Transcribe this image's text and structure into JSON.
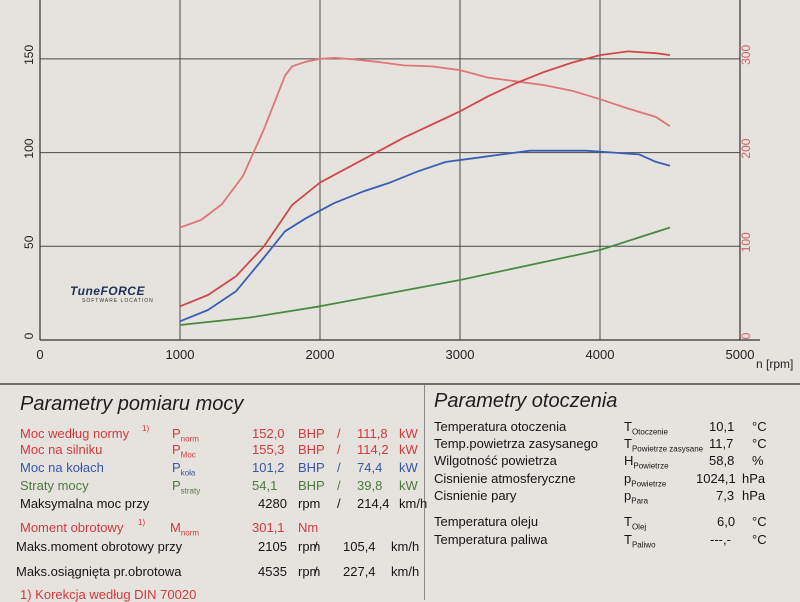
{
  "chart_data": {
    "type": "line",
    "xlabel": "n [rpm]",
    "x_ticks": [
      0,
      1000,
      2000,
      3000,
      4000,
      5000
    ],
    "y_left_ticks": [
      0,
      50,
      100,
      150
    ],
    "y_right_ticks": [
      0,
      100,
      200,
      300
    ],
    "xlim": [
      0,
      5000
    ],
    "ylim_left": [
      0,
      175
    ],
    "ylim_right": [
      0,
      350
    ],
    "grid": true,
    "series": [
      {
        "axis": "right",
        "color": "#e07575",
        "x": [
          1000,
          1150,
          1300,
          1450,
          1600,
          1750,
          1800,
          1900,
          2000,
          2105,
          2200,
          2400,
          2600,
          2800,
          3000,
          3200,
          3400,
          3600,
          3800,
          4000,
          4200,
          4400,
          4500
        ],
        "values": [
          120,
          128,
          145,
          175,
          225,
          282,
          292,
          297,
          300,
          301,
          300,
          297,
          293,
          292,
          288,
          280,
          276,
          272,
          266,
          257,
          247,
          238,
          228
        ]
      },
      {
        "axis": "left",
        "color": "#d04848",
        "x": [
          1000,
          1200,
          1400,
          1600,
          1800,
          2000,
          2200,
          2400,
          2600,
          2800,
          3000,
          3200,
          3400,
          3600,
          3800,
          4000,
          4200,
          4400,
          4500
        ],
        "values": [
          18,
          24,
          34,
          50,
          72,
          84,
          92,
          100,
          108,
          115,
          122,
          130,
          137,
          143,
          148,
          152,
          154,
          153,
          152
        ]
      },
      {
        "axis": "left",
        "color": "#3a5eb5",
        "x": [
          1000,
          1200,
          1400,
          1600,
          1750,
          1900,
          2100,
          2300,
          2500,
          2700,
          2900,
          3100,
          3300,
          3500,
          3700,
          3900,
          4100,
          4280,
          4400,
          4500
        ],
        "values": [
          10,
          16,
          26,
          44,
          58,
          65,
          73,
          79,
          84,
          90,
          95,
          97,
          99,
          101,
          101,
          101,
          100,
          99,
          95,
          93
        ]
      },
      {
        "axis": "left",
        "color": "#4a8a40",
        "x": [
          1000,
          1500,
          2000,
          2500,
          3000,
          3500,
          4000,
          4500
        ],
        "values": [
          8,
          12,
          18,
          25,
          32,
          40,
          48,
          60
        ]
      }
    ]
  },
  "logo": {
    "main": "TuneFORCE",
    "sub": "SOFTWARE LOCATION"
  },
  "left_panel": {
    "title": "Parametry pomiaru mocy",
    "rows": [
      {
        "label": "Moc według normy",
        "sup": "1)",
        "sym": "P",
        "sub": "norm",
        "v1": "152,0",
        "u1": "BHP",
        "sep": "/",
        "v2": "111,8",
        "u2": "kW"
      },
      {
        "label": "Moc na silniku",
        "sym": "P",
        "sub": "Moc",
        "v1": "155,3",
        "u1": "BHP",
        "sep": "/",
        "v2": "114,2",
        "u2": "kW"
      },
      {
        "label": "Moc na kołach",
        "sym": "P",
        "sub": "koła",
        "v1": "101,2",
        "u1": "BHP",
        "sep": "/",
        "v2": "74,4",
        "u2": "kW"
      },
      {
        "label": "Straty mocy",
        "sym": "P",
        "sub": "straty",
        "v1": "54,1",
        "u1": "BHP",
        "sep": "/",
        "v2": "39,8",
        "u2": "kW"
      },
      {
        "label": "Maksymalna moc przy",
        "v1": "4280",
        "u1": "rpm",
        "sep": "/",
        "v2": "214,4",
        "u2": "km/h"
      },
      {
        "label": "Moment obrotowy",
        "sup": "1)",
        "sym": "M",
        "sub": "norm",
        "v1": "301,1",
        "u1": "Nm"
      },
      {
        "label": "Maks.moment obrotowy przy",
        "v1": "2105",
        "u1": "rpm",
        "sep": "/",
        "v2": "105,4",
        "u2": "km/h"
      },
      {
        "label": "Maks.osiągnięta pr.obrotowa",
        "v1": "4535",
        "u1": "rpm",
        "sep": "/",
        "v2": "227,4",
        "u2": "km/h"
      },
      {
        "label": "1) Korekcja według DIN 70020"
      }
    ]
  },
  "right_panel": {
    "title": "Parametry otoczenia",
    "rows": [
      {
        "label": "Temperatura otoczenia",
        "sym": "T",
        "sub": "Otoczenie",
        "val": "10,1",
        "unit": "°C"
      },
      {
        "label": "Temp.powietrza zasysanego",
        "sym": "T",
        "sub": "Powietrze zasysane",
        "val": "11,7",
        "unit": "°C"
      },
      {
        "label": "Wilgotność powietrza",
        "sym": "H",
        "sub": "Powietrze",
        "val": "58,8",
        "unit": "%"
      },
      {
        "label": "Cisnienie atmosferyczne",
        "sym": "p",
        "sub": "Powietrze",
        "val": "1024,1",
        "unit": "hPa"
      },
      {
        "label": "Cisnienie pary",
        "sym": "p",
        "sub": "Para",
        "val": "7,3",
        "unit": "hPa"
      },
      {
        "label": "Temperatura oleju",
        "sym": "T",
        "sub": "Olej",
        "val": "6,0",
        "unit": "°C"
      },
      {
        "label": "Temperatura paliwa",
        "sym": "T",
        "sub": "Paliwo",
        "val": "---,-",
        "unit": "°C"
      }
    ]
  }
}
